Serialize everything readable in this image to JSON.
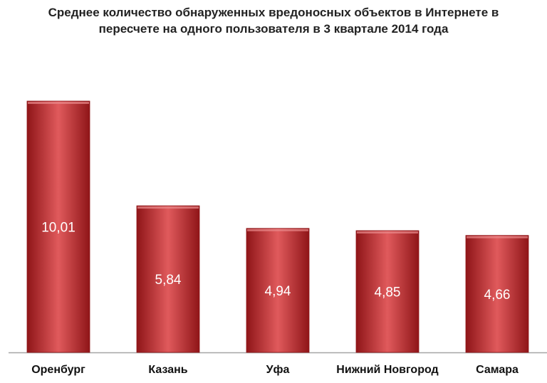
{
  "chart_data": {
    "type": "bar",
    "title_lines": [
      "Среднее количество обнаруженных вредоносных объектов в Интернете в",
      "пересчете на одного пользователя в 3 квартале 2014 года"
    ],
    "categories": [
      "Оренбург",
      "Казань",
      "Уфа",
      "Нижний Новгород",
      "Самара"
    ],
    "values": [
      10.01,
      5.84,
      4.94,
      4.85,
      4.66
    ],
    "value_labels": [
      "10,01",
      "5,84",
      "4,94",
      "4,85",
      "4,66"
    ],
    "xlabel": "",
    "ylabel": "",
    "ylim": [
      0,
      10.01
    ],
    "grid": false,
    "legend": "none",
    "colors": {
      "bar": "#c3262a",
      "bar_light": "#e05a5c",
      "bar_dark": "#8f1518",
      "axis": "#a6a6a6"
    }
  }
}
